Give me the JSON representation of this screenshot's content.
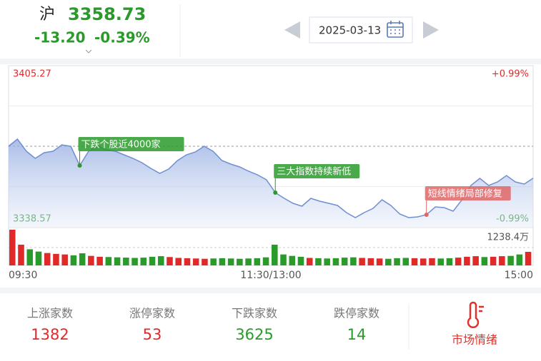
{
  "header": {
    "market": "沪",
    "price": "3358.73",
    "change": "-13.20",
    "change_pct": "-0.39%",
    "date": "2025-03-13"
  },
  "chart": {
    "type": "line",
    "ylim": [
      3338.57,
      3405.27
    ],
    "ylim_labels": [
      "3338.57",
      "3405.27"
    ],
    "pct_labels": [
      "-0.99%",
      "+0.99%"
    ],
    "up_color": "#e02a2a",
    "down_color": "#2a9a2a",
    "line_color": "#6f8fd0",
    "values": [
      3371.92,
      3374.87,
      3369.85,
      3366.9,
      3369.26,
      3369.85,
      3372.51,
      3371.92,
      3363.95,
      3369.85,
      3371.92,
      3370.44,
      3369.85,
      3368.38,
      3366.9,
      3365.13,
      3362.77,
      3360.71,
      3362.48,
      3366.02,
      3368.38,
      3369.56,
      3371.92,
      3369.85,
      3366.02,
      3364.54,
      3363.36,
      3361.59,
      3360.12,
      3358.05,
      3352.74,
      3350.38,
      3348.31,
      3347.13,
      3350.38,
      3349.2,
      3348.31,
      3347.42,
      3344.47,
      3342.41,
      3344.47,
      3346.24,
      3349.79,
      3347.42,
      3343.88,
      3342.41,
      3342.7,
      3343.59,
      3346.83,
      3346.54,
      3345.06,
      3349.79,
      3355.69,
      3358.64,
      3355.69,
      3357.16,
      3359.82,
      3357.16,
      3356.28,
      3358.73
    ],
    "annotations": [
      {
        "text": "下跌个股近4000家",
        "index": 8,
        "color": "#2a9a2a"
      },
      {
        "text": "三大指数持续新低",
        "index": 30,
        "color": "#2a9a2a"
      },
      {
        "text": "短线情绪局部修复",
        "index": 47,
        "color": "#e06666"
      }
    ],
    "volume": {
      "max_label": "1238.4万",
      "ylim": [
        0,
        1238.4
      ],
      "values": [
        1238.4,
        720,
        560,
        480,
        430,
        400,
        380,
        350,
        420,
        330,
        300,
        290,
        280,
        270,
        260,
        270,
        300,
        320,
        290,
        260,
        250,
        240,
        230,
        240,
        250,
        240,
        230,
        240,
        250,
        280,
        720,
        380,
        330,
        300,
        260,
        250,
        240,
        250,
        270,
        280,
        260,
        250,
        240,
        230,
        250,
        260,
        250,
        240,
        250,
        240,
        250,
        270,
        300,
        320,
        290,
        300,
        320,
        330,
        380,
        470
      ]
    },
    "time_labels": [
      "09:30",
      "11:30/13:00",
      "15:00"
    ]
  },
  "stats": [
    {
      "label": "上涨家数",
      "value": "1382",
      "color": "#e02a2a"
    },
    {
      "label": "涨停家数",
      "value": "53",
      "color": "#e02a2a"
    },
    {
      "label": "下跌家数",
      "value": "3625",
      "color": "#2a9a2a"
    },
    {
      "label": "跌停家数",
      "value": "14",
      "color": "#2a9a2a"
    }
  ],
  "sentiment": {
    "label": "市场情绪"
  }
}
